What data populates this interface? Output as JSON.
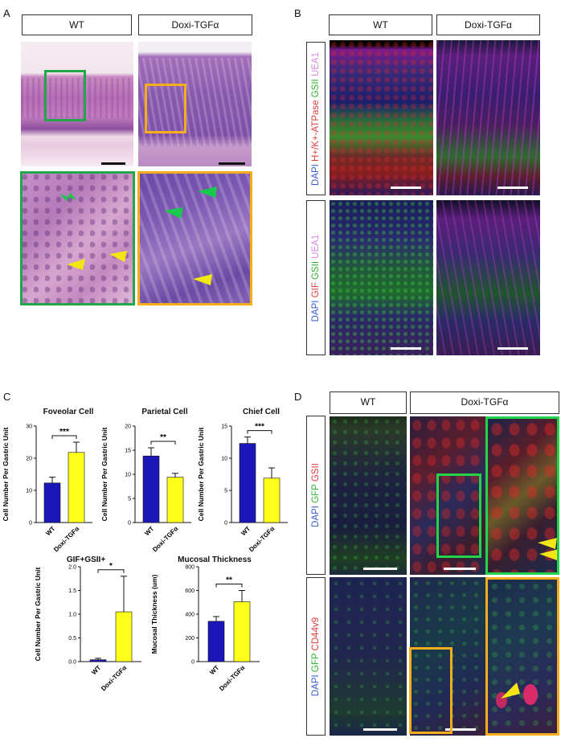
{
  "panels": {
    "A": "A",
    "B": "B",
    "C": "C",
    "D": "D"
  },
  "groups": {
    "wt": "WT",
    "doxi": "Doxi-TGFα"
  },
  "stain_labels": {
    "b_top": [
      {
        "text": "DAPI ",
        "color": "#3b5bd6"
      },
      {
        "text": "H+/K+-ATPase ",
        "color": "#e23b3b"
      },
      {
        "text": "GSII ",
        "color": "#2fb52f"
      },
      {
        "text": "UEA1",
        "color": "#d58be0"
      }
    ],
    "b_bottom": [
      {
        "text": "DAPI ",
        "color": "#3b5bd6"
      },
      {
        "text": "GIF ",
        "color": "#e23b3b"
      },
      {
        "text": "GSII ",
        "color": "#2fb52f"
      },
      {
        "text": "UEA1",
        "color": "#d58be0"
      }
    ],
    "d_top": [
      {
        "text": "DAPI  ",
        "color": "#3b5bd6"
      },
      {
        "text": "GFP  ",
        "color": "#2fb52f"
      },
      {
        "text": "GSII",
        "color": "#e23b3b"
      }
    ],
    "d_bottom": [
      {
        "text": "DAPI  ",
        "color": "#3b5bd6"
      },
      {
        "text": "GFP  ",
        "color": "#2fb52f"
      },
      {
        "text": "CD44v9",
        "color": "#e23b3b"
      }
    ]
  },
  "colors": {
    "wt_bar": "#1a16b8",
    "doxi_bar": "#ffff1a",
    "box_green": "#22a64a",
    "box_orange": "#f5ad1a",
    "arrow_green": "#19c94b",
    "arrow_yellow": "#f2e614"
  },
  "chart_data": [
    {
      "type": "bar",
      "title": "Foveolar Cell",
      "categories": [
        "WT",
        "Doxi-TGFα"
      ],
      "values": [
        12.3,
        21.8
      ],
      "errors": [
        1.8,
        3.2
      ],
      "ylabel": "Cell Number Per Gastric Unit",
      "ylim": [
        0,
        30
      ],
      "yticks": [
        "0",
        "10",
        "20",
        "30"
      ],
      "significance": "***"
    },
    {
      "type": "bar",
      "title": "Parietal Cell",
      "categories": [
        "WT",
        "Doxi-TGFα"
      ],
      "values": [
        13.8,
        9.4
      ],
      "errors": [
        1.7,
        0.8
      ],
      "ylabel": "Cell Number Per Gastric Unit",
      "ylim": [
        0,
        20
      ],
      "yticks": [
        "0",
        "5",
        "10",
        "15",
        "20"
      ],
      "significance": "**"
    },
    {
      "type": "bar",
      "title": "Chief Cell",
      "categories": [
        "WT",
        "Doxi-TGFα"
      ],
      "values": [
        12.3,
        6.9
      ],
      "errors": [
        1.0,
        1.6
      ],
      "ylabel": "Cell Number Per Gastric Unit",
      "ylim": [
        0,
        15
      ],
      "yticks": [
        "0",
        "5",
        "10",
        "15"
      ],
      "significance": "***"
    },
    {
      "type": "bar",
      "title": "GIF+GSII+",
      "categories": [
        "WT",
        "Doxi-TGFα"
      ],
      "values": [
        0.04,
        1.05
      ],
      "errors": [
        0.03,
        0.75
      ],
      "ylabel": "Cell Number Per Gastric Unit",
      "ylim": [
        0,
        2.0
      ],
      "yticks": [
        "0.0",
        "0.5",
        "1.0",
        "1.5",
        "2.0"
      ],
      "significance": "*"
    },
    {
      "type": "bar",
      "title": "Mucosal Thickness",
      "categories": [
        "WT",
        "Doxi-TGFα"
      ],
      "values": [
        340,
        505
      ],
      "errors": [
        40,
        95
      ],
      "ylabel": "Mucosal Thickness (um)",
      "ylim": [
        0,
        800
      ],
      "yticks": [
        "0",
        "200",
        "400",
        "600",
        "800"
      ],
      "significance": "**"
    }
  ]
}
